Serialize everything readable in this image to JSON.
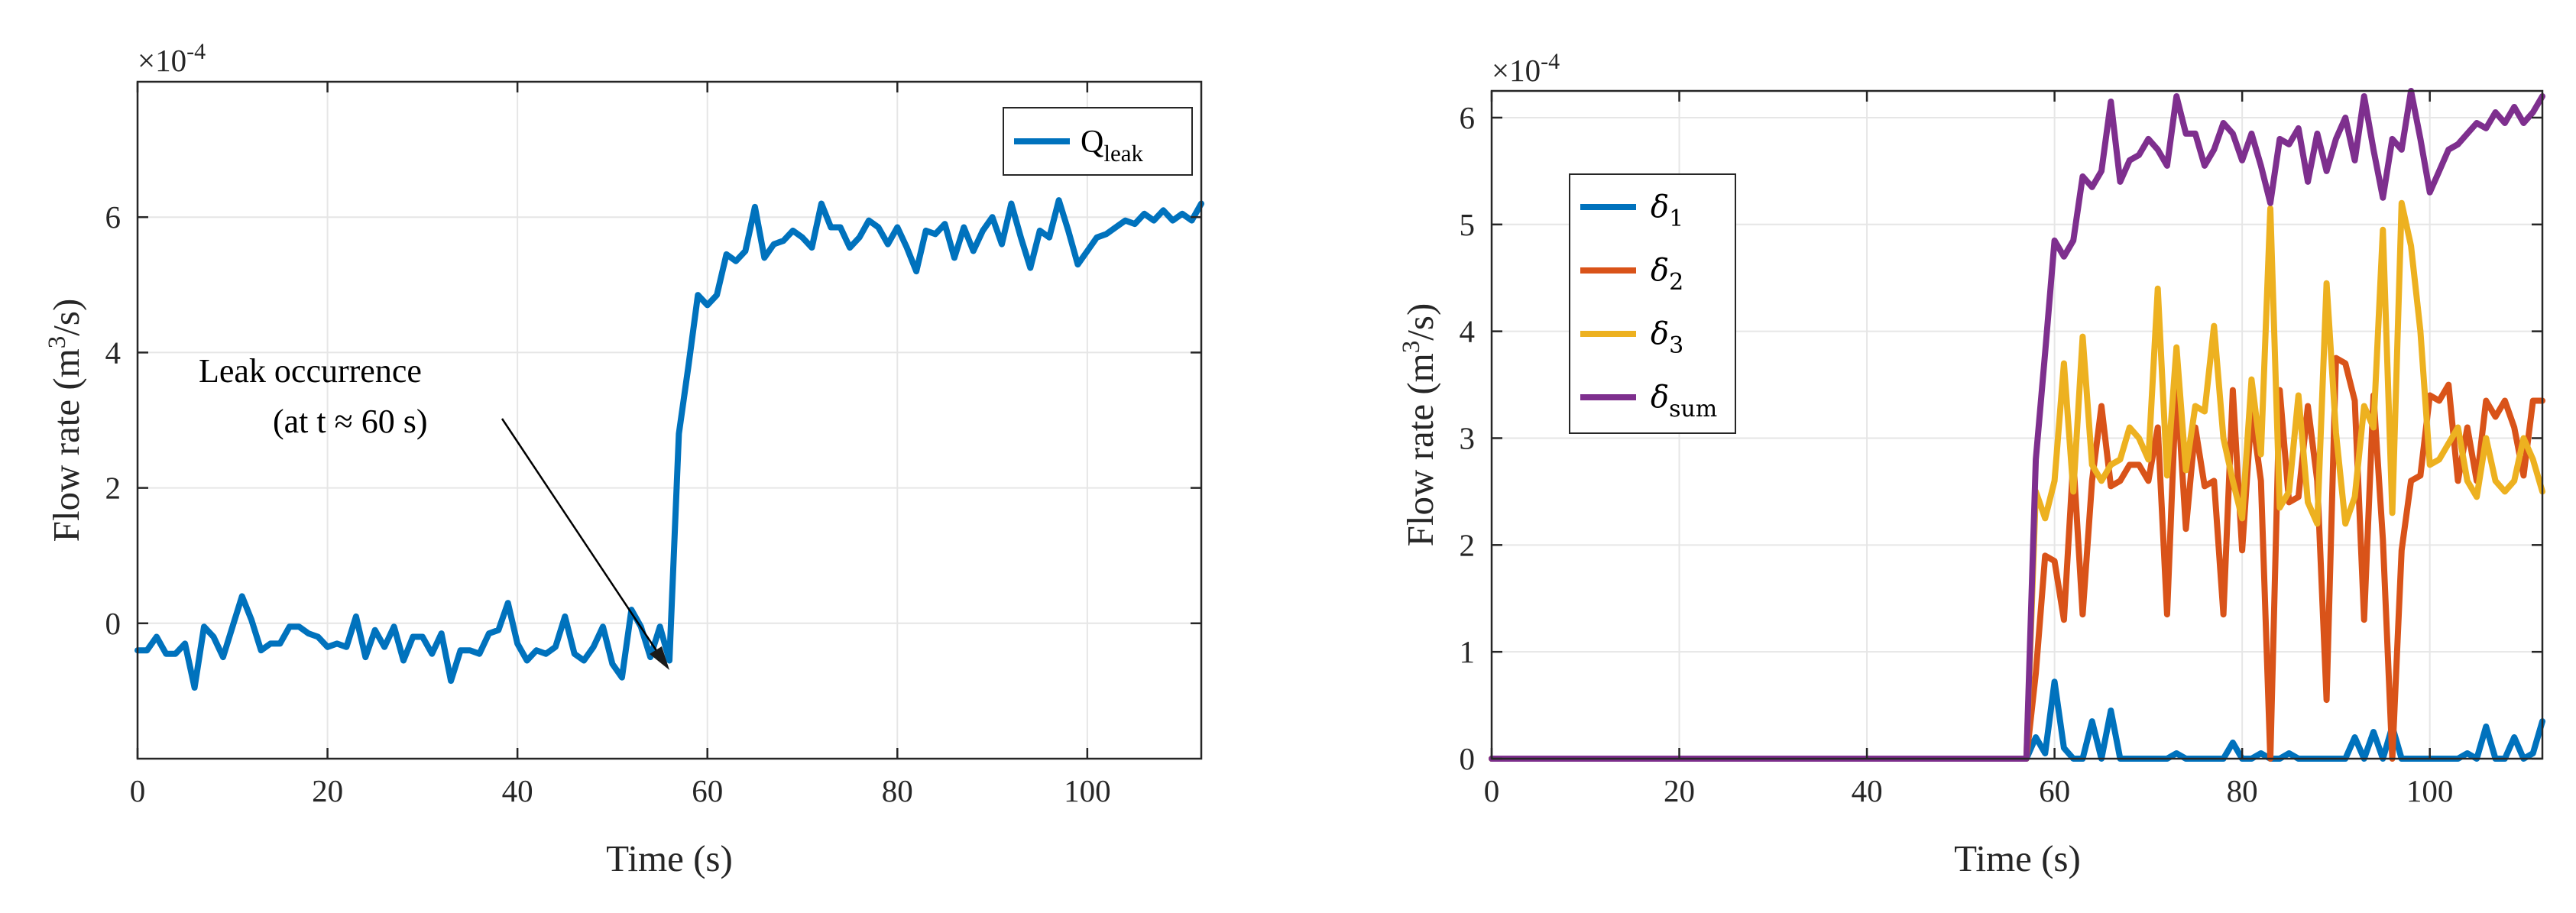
{
  "colors": {
    "blue": "#0072BD",
    "orange": "#D95319",
    "yellow": "#EDB120",
    "purple": "#7E2F8E",
    "grid": "#e6e6e6",
    "axis": "#262626"
  },
  "chart_data": [
    {
      "type": "line",
      "xlabel": "Time (s)",
      "ylabel": "Flow rate (m3/s)",
      "ylabel_parts": {
        "prefix": "Flow rate (m",
        "sup": "3",
        "suffix": "/s)"
      },
      "exponent_label": {
        "base": "×10",
        "exp": "-4"
      },
      "xlim": [
        0,
        112
      ],
      "ylim": [
        -2,
        8
      ],
      "xticks": [
        0,
        20,
        40,
        60,
        80,
        100
      ],
      "yticks": [
        0,
        2,
        4,
        6
      ],
      "ytick_labels": [
        "0",
        "2",
        "4",
        "6"
      ],
      "legend": {
        "position": "top-right",
        "entries": [
          {
            "main": "Q",
            "sub": "leak"
          }
        ]
      },
      "annotation": {
        "line1": "Leak occurrence",
        "line2": "(at t ≈ 60 s)",
        "arrow_to": [
          56,
          -0.5
        ]
      },
      "series": [
        {
          "name": "Qleak",
          "color_key": "blue",
          "x": [
            0,
            1,
            2,
            3,
            4,
            5,
            6,
            7,
            8,
            9,
            10,
            11,
            12,
            13,
            14,
            15,
            16,
            17,
            18,
            19,
            20,
            21,
            22,
            23,
            24,
            25,
            26,
            27,
            28,
            29,
            30,
            31,
            32,
            33,
            34,
            35,
            36,
            37,
            38,
            39,
            40,
            41,
            42,
            43,
            44,
            45,
            46,
            47,
            48,
            49,
            50,
            51,
            52,
            53,
            54,
            55,
            56,
            57,
            58,
            59,
            60,
            61,
            62,
            63,
            64,
            65,
            66,
            67,
            68,
            69,
            70,
            71,
            72,
            73,
            74,
            75,
            76,
            77,
            78,
            79,
            80,
            81,
            82,
            83,
            84,
            85,
            86,
            87,
            88,
            89,
            90,
            91,
            92,
            93,
            94,
            95,
            96,
            97,
            98,
            99,
            100,
            101,
            102,
            103,
            104,
            105,
            106,
            107,
            108,
            109,
            110,
            111,
            112
          ],
          "values": [
            -0.4,
            -0.4,
            -0.2,
            -0.45,
            -0.45,
            -0.3,
            -0.95,
            -0.05,
            -0.2,
            -0.5,
            -0.05,
            0.4,
            0.05,
            -0.4,
            -0.3,
            -0.3,
            -0.05,
            -0.05,
            -0.15,
            -0.2,
            -0.35,
            -0.3,
            -0.35,
            0.1,
            -0.5,
            -0.1,
            -0.35,
            -0.05,
            -0.55,
            -0.2,
            -0.2,
            -0.45,
            -0.15,
            -0.85,
            -0.4,
            -0.4,
            -0.45,
            -0.15,
            -0.1,
            0.3,
            -0.3,
            -0.55,
            -0.4,
            -0.45,
            -0.35,
            0.1,
            -0.45,
            -0.55,
            -0.35,
            -0.05,
            -0.6,
            -0.8,
            0.2,
            -0.05,
            -0.5,
            -0.05,
            -0.55,
            2.8,
            3.8,
            4.85,
            4.7,
            4.85,
            5.45,
            5.35,
            5.5,
            6.15,
            5.4,
            5.6,
            5.65,
            5.8,
            5.7,
            5.55,
            6.2,
            5.85,
            5.85,
            5.55,
            5.7,
            5.95,
            5.85,
            5.6,
            5.85,
            5.55,
            5.2,
            5.8,
            5.75,
            5.9,
            5.4,
            5.85,
            5.5,
            5.8,
            6.0,
            5.6,
            6.2,
            5.7,
            5.25,
            5.8,
            5.7,
            6.25,
            5.8,
            5.3,
            5.5,
            5.7,
            5.75,
            5.85,
            5.95,
            5.9,
            6.05,
            5.95,
            6.1,
            5.95,
            6.05,
            5.95,
            6.2
          ]
        }
      ]
    },
    {
      "type": "line",
      "xlabel": "Time (s)",
      "ylabel": "Flow rate (m3/s)",
      "ylabel_parts": {
        "prefix": "Flow rate (m",
        "sup": "3",
        "suffix": "/s)"
      },
      "exponent_label": {
        "base": "×10",
        "exp": "-4"
      },
      "xlim": [
        0,
        112
      ],
      "ylim": [
        0,
        6.25
      ],
      "xticks": [
        0,
        20,
        40,
        60,
        80,
        100
      ],
      "yticks": [
        0,
        1,
        2,
        3,
        4,
        5,
        6
      ],
      "ytick_labels": [
        "0",
        "1",
        "2",
        "3",
        "4",
        "5",
        "6"
      ],
      "legend": {
        "position": "upper-left",
        "entries": [
          {
            "main": "δ",
            "sub": "1"
          },
          {
            "main": "δ",
            "sub": "2"
          },
          {
            "main": "δ",
            "sub": "3"
          },
          {
            "main": "δ",
            "sub": "sum"
          }
        ]
      },
      "series": [
        {
          "name": "δ1",
          "color_key": "blue",
          "x": [
            0,
            57,
            58,
            59,
            60,
            61,
            62,
            63,
            64,
            65,
            66,
            67,
            68,
            69,
            70,
            71,
            72,
            73,
            74,
            75,
            76,
            77,
            78,
            79,
            80,
            81,
            82,
            83,
            84,
            85,
            86,
            87,
            88,
            89,
            90,
            91,
            92,
            93,
            94,
            95,
            96,
            97,
            98,
            99,
            100,
            101,
            102,
            103,
            104,
            105,
            106,
            107,
            108,
            109,
            110,
            111,
            112
          ],
          "values": [
            0,
            0,
            0.2,
            0.05,
            0.72,
            0.1,
            0,
            0,
            0.35,
            0,
            0.45,
            0,
            0,
            0,
            0,
            0,
            0,
            0.05,
            0,
            0,
            0,
            0,
            0,
            0.15,
            0,
            0,
            0.05,
            0,
            0,
            0.05,
            0,
            0,
            0,
            0,
            0,
            0,
            0.2,
            0,
            0.25,
            0,
            0.3,
            0,
            0,
            0,
            0,
            0,
            0,
            0,
            0.05,
            0,
            0.3,
            0,
            0,
            0.2,
            0,
            0.05,
            0.35
          ]
        },
        {
          "name": "δ2",
          "color_key": "orange",
          "x": [
            0,
            57,
            58,
            59,
            60,
            61,
            62,
            63,
            64,
            65,
            66,
            67,
            68,
            69,
            70,
            71,
            72,
            73,
            74,
            75,
            76,
            77,
            78,
            79,
            80,
            81,
            82,
            83,
            84,
            85,
            86,
            87,
            88,
            89,
            90,
            91,
            92,
            93,
            94,
            95,
            96,
            97,
            98,
            99,
            100,
            101,
            102,
            103,
            104,
            105,
            106,
            107,
            108,
            109,
            110,
            111,
            112
          ],
          "values": [
            0,
            0,
            0.8,
            1.9,
            1.85,
            1.3,
            2.8,
            1.35,
            2.6,
            3.3,
            2.55,
            2.6,
            2.75,
            2.75,
            2.6,
            3.1,
            1.35,
            3.55,
            2.15,
            3.1,
            2.55,
            2.6,
            1.35,
            3.45,
            1.95,
            3.25,
            2.6,
            0,
            3.45,
            2.4,
            2.45,
            3.3,
            2.6,
            0.55,
            3.75,
            3.7,
            3.35,
            1.3,
            3.4,
            2.05,
            0,
            1.95,
            2.6,
            2.65,
            3.4,
            3.35,
            3.5,
            2.6,
            3.1,
            2.6,
            3.35,
            3.2,
            3.35,
            3.1,
            2.65,
            3.35,
            3.35
          ]
        },
        {
          "name": "δ3",
          "color_key": "yellow",
          "x": [
            0,
            57,
            58,
            59,
            60,
            61,
            62,
            63,
            64,
            65,
            66,
            67,
            68,
            69,
            70,
            71,
            72,
            73,
            74,
            75,
            76,
            77,
            78,
            79,
            80,
            81,
            82,
            83,
            84,
            85,
            86,
            87,
            88,
            89,
            90,
            91,
            92,
            93,
            94,
            95,
            96,
            97,
            98,
            99,
            100,
            101,
            102,
            103,
            104,
            105,
            106,
            107,
            108,
            109,
            110,
            111,
            112
          ],
          "values": [
            0,
            0,
            2.5,
            2.25,
            2.6,
            3.7,
            2.5,
            3.95,
            2.75,
            2.6,
            2.75,
            2.8,
            3.1,
            3.0,
            2.8,
            4.4,
            2.65,
            3.85,
            2.7,
            3.3,
            3.25,
            4.05,
            3.0,
            2.6,
            2.25,
            3.55,
            2.85,
            5.15,
            2.35,
            2.5,
            3.4,
            2.4,
            2.2,
            4.45,
            3.05,
            2.2,
            2.45,
            3.3,
            3.1,
            4.95,
            2.3,
            5.2,
            4.8,
            4.0,
            2.75,
            2.8,
            2.95,
            3.1,
            2.6,
            2.45,
            3.0,
            2.6,
            2.5,
            2.6,
            3.0,
            2.8,
            2.5
          ]
        },
        {
          "name": "δsum",
          "color_key": "purple",
          "x": [
            0,
            57,
            58,
            59,
            60,
            61,
            62,
            63,
            64,
            65,
            66,
            67,
            68,
            69,
            70,
            71,
            72,
            73,
            74,
            75,
            76,
            77,
            78,
            79,
            80,
            81,
            82,
            83,
            84,
            85,
            86,
            87,
            88,
            89,
            90,
            91,
            92,
            93,
            94,
            95,
            96,
            97,
            98,
            99,
            100,
            101,
            102,
            103,
            104,
            105,
            106,
            107,
            108,
            109,
            110,
            111,
            112
          ],
          "values": [
            0,
            0,
            2.8,
            3.8,
            4.85,
            4.7,
            4.85,
            5.45,
            5.35,
            5.5,
            6.15,
            5.4,
            5.6,
            5.65,
            5.8,
            5.7,
            5.55,
            6.2,
            5.85,
            5.85,
            5.55,
            5.7,
            5.95,
            5.85,
            5.6,
            5.85,
            5.55,
            5.2,
            5.8,
            5.75,
            5.9,
            5.4,
            5.85,
            5.5,
            5.8,
            6.0,
            5.6,
            6.2,
            5.7,
            5.25,
            5.8,
            5.7,
            6.25,
            5.8,
            5.3,
            5.5,
            5.7,
            5.75,
            5.85,
            5.95,
            5.9,
            6.05,
            5.95,
            6.1,
            5.95,
            6.05,
            6.2
          ]
        }
      ]
    }
  ]
}
